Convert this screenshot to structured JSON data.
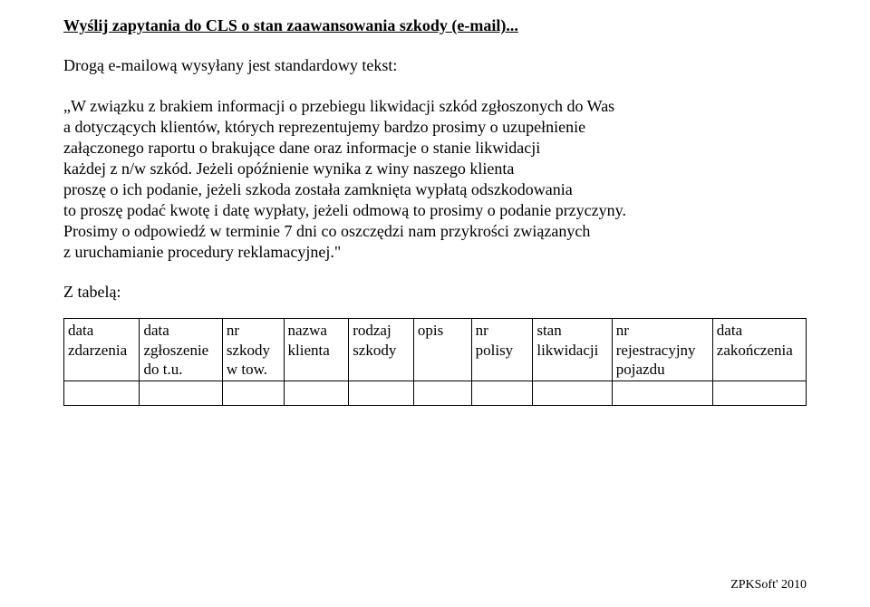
{
  "title": "Wyślij zapytania do CLS o stan zaawansowania szkody (e-mail)...",
  "intro_line": "Drogą e-mailową wysyłany jest standardowy tekst:",
  "body_lines": [
    "„W związku z brakiem informacji o przebiegu likwidacji szkód zgłoszonych do Was",
    "a dotyczących klientów, których reprezentujemy bardzo prosimy o uzupełnienie",
    "załączonego raportu o brakujące dane oraz informacje o stanie likwidacji",
    "każdej z n/w szkód. Jeżeli opóźnienie wynika z winy naszego klienta",
    "proszę o ich podanie, jeżeli szkoda została zamknięta wypłatą odszkodowania",
    "to proszę podać kwotę i datę wypłaty, jeżeli odmową to prosimy o podanie przyczyny.",
    "Prosimy o odpowiedź w terminie 7 dni co oszczędzi nam przykrości związanych",
    "z uruchamianie procedury reklamacyjnej.\""
  ],
  "table_label": "Z tabelą:",
  "columns": [
    "data zdarzenia",
    "data zgłoszenie do t.u.",
    "nr szkody w tow.",
    "nazwa klienta",
    "rodzaj szkody",
    "opis",
    "nr polisy",
    "stan likwidacji",
    "nr rejestracyjny pojazdu",
    "data zakończenia"
  ],
  "footer": "ZPKSoft' 2010"
}
